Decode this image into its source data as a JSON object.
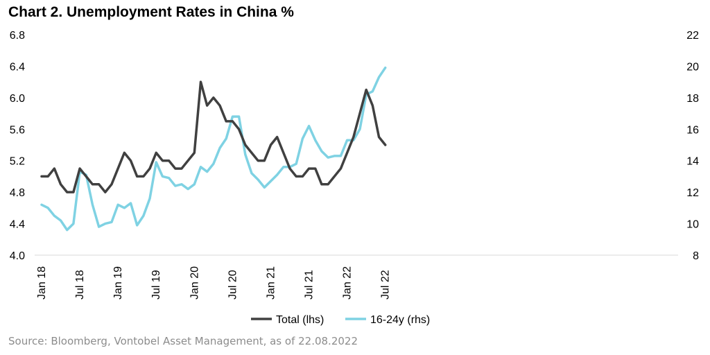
{
  "title": "Chart 2. Unemployment Rates in China %",
  "source": "Source: Bloomberg, Vontobel Asset Management, as of 22.08.2022",
  "chart_data": {
    "type": "line",
    "title": "Chart 2. Unemployment Rates in China %",
    "x_labels": [
      "Jan 18",
      "Jul 18",
      "Jan 19",
      "Jul 19",
      "Jan 20",
      "Jul 20",
      "Jan 21",
      "Jul 21",
      "Jan 22",
      "Jul 22"
    ],
    "x": [
      "2018-01",
      "2018-02",
      "2018-03",
      "2018-04",
      "2018-05",
      "2018-06",
      "2018-07",
      "2018-08",
      "2018-09",
      "2018-10",
      "2018-11",
      "2018-12",
      "2019-01",
      "2019-02",
      "2019-03",
      "2019-04",
      "2019-05",
      "2019-06",
      "2019-07",
      "2019-08",
      "2019-09",
      "2019-10",
      "2019-11",
      "2019-12",
      "2020-01",
      "2020-02",
      "2020-03",
      "2020-04",
      "2020-05",
      "2020-06",
      "2020-07",
      "2020-08",
      "2020-09",
      "2020-10",
      "2020-11",
      "2020-12",
      "2021-01",
      "2021-02",
      "2021-03",
      "2021-04",
      "2021-05",
      "2021-06",
      "2021-07",
      "2021-08",
      "2021-09",
      "2021-10",
      "2021-11",
      "2021-12",
      "2022-01",
      "2022-02",
      "2022-03",
      "2022-04",
      "2022-05",
      "2022-06",
      "2022-07"
    ],
    "y_left_lim": [
      4.0,
      6.8
    ],
    "y_left_ticks": [
      "4.0",
      "4.4",
      "4.8",
      "5.2",
      "5.6",
      "6.0",
      "6.4",
      "6.8"
    ],
    "y_right_lim": [
      8,
      22
    ],
    "y_right_ticks": [
      "8",
      "10",
      "12",
      "14",
      "16",
      "18",
      "20",
      "22"
    ],
    "grid": false,
    "legend_position": "bottom",
    "series": [
      {
        "name": "Total (lhs)",
        "axis": "left",
        "color": "#404040",
        "values": [
          5.0,
          5.0,
          5.1,
          4.9,
          4.8,
          4.8,
          5.1,
          5.0,
          4.9,
          4.9,
          4.8,
          4.9,
          5.1,
          5.3,
          5.2,
          5.0,
          5.0,
          5.1,
          5.3,
          5.2,
          5.2,
          5.1,
          5.1,
          5.2,
          5.3,
          6.2,
          5.9,
          6.0,
          5.9,
          5.7,
          5.7,
          5.6,
          5.4,
          5.3,
          5.2,
          5.2,
          5.4,
          5.5,
          5.3,
          5.1,
          5.0,
          5.0,
          5.1,
          5.1,
          4.9,
          4.9,
          5.0,
          5.1,
          5.3,
          5.5,
          5.8,
          6.1,
          5.9,
          5.5,
          5.4
        ]
      },
      {
        "name": "16-24y (rhs)",
        "axis": "right",
        "color": "#7fd2e3",
        "values": [
          11.2,
          11.0,
          10.5,
          10.2,
          9.6,
          10.0,
          13.3,
          13.1,
          11.2,
          9.8,
          10.0,
          10.1,
          11.2,
          11.0,
          11.3,
          9.9,
          10.5,
          11.6,
          13.9,
          13.0,
          12.9,
          12.4,
          12.5,
          12.2,
          12.5,
          13.6,
          13.3,
          13.8,
          14.8,
          15.4,
          16.8,
          16.8,
          14.4,
          13.2,
          12.8,
          12.3,
          12.7,
          13.1,
          13.6,
          13.6,
          13.8,
          15.4,
          16.2,
          15.3,
          14.6,
          14.2,
          14.3,
          14.3,
          15.3,
          15.3,
          16.0,
          18.2,
          18.4,
          19.3,
          19.9
        ]
      }
    ]
  }
}
